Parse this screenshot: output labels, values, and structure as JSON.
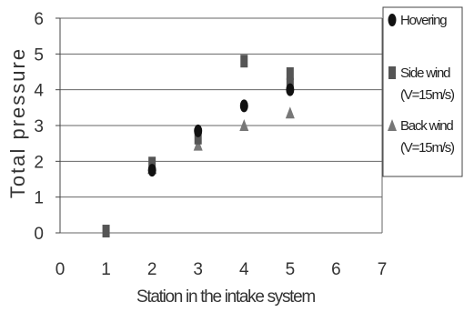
{
  "chart_data": {
    "type": "scatter",
    "xlabel": "Station in the intake system",
    "ylabel": "Total pressure",
    "xlim": [
      0,
      7
    ],
    "ylim": [
      0,
      6
    ],
    "xticks": [
      "0",
      "1",
      "2",
      "3",
      "4",
      "5",
      "6",
      "7"
    ],
    "yticks": [
      "0",
      "1",
      "2",
      "3",
      "4",
      "5",
      "6"
    ],
    "grid": "horizontal",
    "legend_position": "right",
    "series": [
      {
        "name": "Hovering",
        "marker": "circle",
        "color": "#111111",
        "x": [
          2,
          3,
          4,
          5
        ],
        "y": [
          1.75,
          2.85,
          3.55,
          4.0
        ]
      },
      {
        "name": "Side wind (V=15m/s)",
        "marker": "square",
        "color": "#555555",
        "x": [
          1,
          2,
          3,
          4,
          5,
          5
        ],
        "y": [
          0.05,
          1.95,
          2.65,
          4.8,
          4.45,
          4.15
        ]
      },
      {
        "name": "Back wind (V=15m/s)",
        "marker": "triangle",
        "color": "#777777",
        "x": [
          2,
          3,
          4,
          5
        ],
        "y": [
          1.8,
          2.45,
          3.0,
          3.35
        ]
      }
    ],
    "legend": [
      {
        "lines": [
          "Hovering"
        ]
      },
      {
        "lines": [
          "Side wind",
          "(V=15m/s)"
        ]
      },
      {
        "lines": [
          "Back wind",
          "(V=15m/s)"
        ]
      }
    ]
  }
}
